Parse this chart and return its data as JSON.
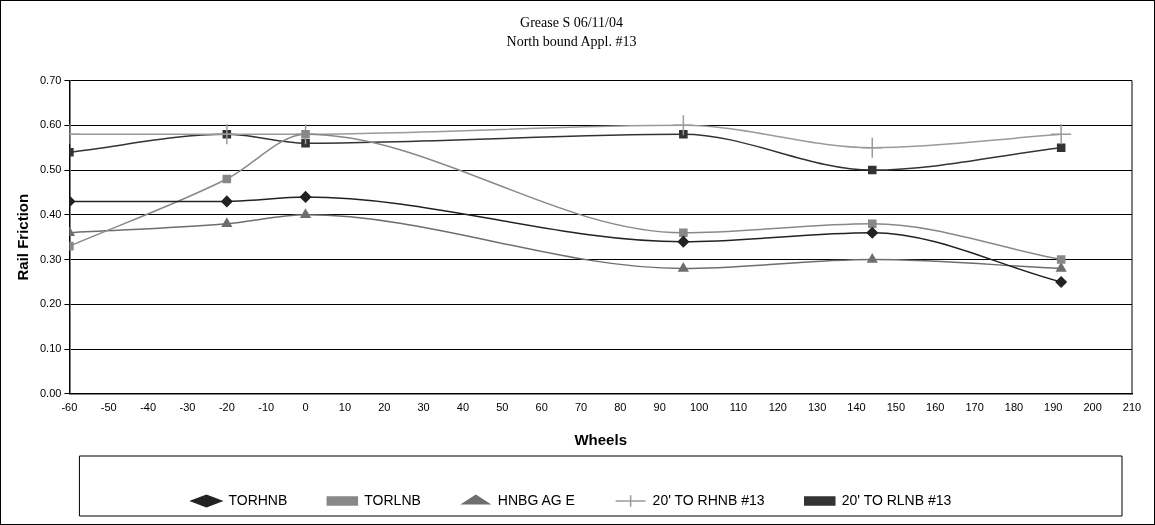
{
  "chart_data": {
    "type": "line",
    "title": "Grease S 06/11/04",
    "subtitle": "North bound Appl. #13",
    "xlabel": "Wheels",
    "ylabel": "Rail Friction",
    "x": [
      -60,
      -20,
      0,
      96,
      144,
      192
    ],
    "series": [
      {
        "name": "TORHNB",
        "color": "#222222",
        "marker": "diamond",
        "values": [
          0.43,
          0.43,
          0.44,
          0.34,
          0.36,
          0.25
        ]
      },
      {
        "name": "TORLNB",
        "color": "#888888",
        "marker": "square",
        "values": [
          0.33,
          0.48,
          0.58,
          0.36,
          0.38,
          0.3
        ]
      },
      {
        "name": "HNBG AG E",
        "color": "#6e6e6e",
        "marker": "triangle",
        "values": [
          0.36,
          0.38,
          0.4,
          0.28,
          0.3,
          0.28
        ]
      },
      {
        "name": "20' TO RHNB #13",
        "color": "#9a9a9a",
        "marker": "cross",
        "values": [
          0.58,
          0.58,
          0.58,
          0.6,
          0.55,
          0.58
        ]
      },
      {
        "name": "20' TO RLNB #13",
        "color": "#333333",
        "marker": "square",
        "values": [
          0.54,
          0.58,
          0.56,
          0.58,
          0.5,
          0.55
        ]
      }
    ],
    "xlim": [
      -60,
      210
    ],
    "xticks": [
      -60,
      -50,
      -40,
      -30,
      -20,
      -10,
      0,
      10,
      20,
      30,
      40,
      50,
      60,
      70,
      80,
      90,
      100,
      110,
      120,
      130,
      140,
      150,
      160,
      170,
      180,
      190,
      200,
      210
    ],
    "ylim": [
      0,
      0.7
    ],
    "yticks": [
      {
        "value": 0,
        "label": "0.00"
      },
      {
        "value": 0.1,
        "label": "0.10"
      },
      {
        "value": 0.2,
        "label": "0.20"
      },
      {
        "value": 0.3,
        "label": "0.30"
      },
      {
        "value": 0.4,
        "label": "0.40"
      },
      {
        "value": 0.5,
        "label": "0.50"
      },
      {
        "value": 0.6,
        "label": "0.60"
      },
      {
        "value": 0.7,
        "label": "0.70"
      }
    ],
    "grid": "y",
    "legend": "bottom",
    "line_style": "solid"
  }
}
